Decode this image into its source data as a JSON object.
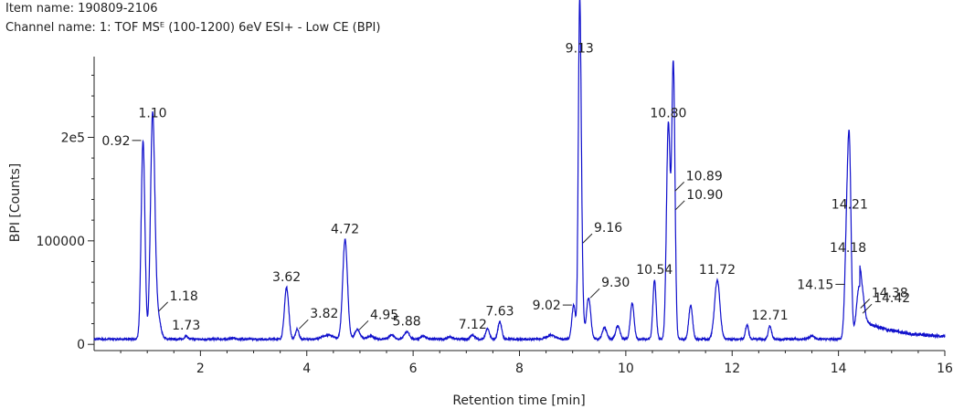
{
  "header": {
    "item_name": "Item name: 190809-2106",
    "channel_name": "Channel name: 1: TOF MSᴱ (100-1200) 6eV ESI+ - Low CE (BPI)"
  },
  "chart_data": {
    "type": "line",
    "xlabel": "Retention time [min]",
    "ylabel": "BPI [Counts]",
    "xlim": [
      0,
      16
    ],
    "ylim": [
      -6000,
      278000
    ],
    "x_ticks": [
      2,
      4,
      6,
      8,
      10,
      12,
      14,
      16
    ],
    "y_ticks": [
      0,
      100000,
      200000
    ],
    "y_tick_labels": [
      "0",
      "100000",
      "2e5"
    ],
    "line_color": "#1010cc",
    "baseline": 5000,
    "peaks": [
      {
        "rt": 0.92,
        "height": 197000,
        "width": 0.035,
        "label": "0.92",
        "label_pos": "left"
      },
      {
        "rt": 1.1,
        "height": 213000,
        "width": 0.04,
        "label": "1.10",
        "label_pos": "top"
      },
      {
        "rt": 1.18,
        "height": 32000,
        "width": 0.06,
        "label": "1.18",
        "label_pos": "right"
      },
      {
        "rt": 1.73,
        "height": 8000,
        "width": 0.03,
        "label": "1.73",
        "label_pos": "top"
      },
      {
        "rt": 3.62,
        "height": 55000,
        "width": 0.04,
        "label": "3.62",
        "label_pos": "top"
      },
      {
        "rt": 3.82,
        "height": 15000,
        "width": 0.03,
        "label": "3.82",
        "label_pos": "right"
      },
      {
        "rt": 4.72,
        "height": 101000,
        "width": 0.045,
        "label": "4.72",
        "label_pos": "top"
      },
      {
        "rt": 4.95,
        "height": 14000,
        "width": 0.05,
        "label": "4.95",
        "label_pos": "right"
      },
      {
        "rt": 5.88,
        "height": 12000,
        "width": 0.05,
        "label": "5.88",
        "label_pos": "top"
      },
      {
        "rt": 7.12,
        "height": 9000,
        "width": 0.04,
        "label": "7.12",
        "label_pos": "top"
      },
      {
        "rt": 7.63,
        "height": 22000,
        "width": 0.035,
        "label": "7.63",
        "label_pos": "top"
      },
      {
        "rt": 9.02,
        "height": 38000,
        "width": 0.035,
        "label": "9.02",
        "label_pos": "left"
      },
      {
        "rt": 9.13,
        "height": 276000,
        "width": 0.025,
        "label": "9.13",
        "label_pos": "top"
      },
      {
        "rt": 9.16,
        "height": 98000,
        "width": 0.03,
        "label": "9.16",
        "label_pos": "right"
      },
      {
        "rt": 9.3,
        "height": 45000,
        "width": 0.04,
        "label": "9.30",
        "label_pos": "right"
      },
      {
        "rt": 10.54,
        "height": 62000,
        "width": 0.03,
        "label": "10.54",
        "label_pos": "top"
      },
      {
        "rt": 10.8,
        "height": 213000,
        "width": 0.035,
        "label": "10.80",
        "label_pos": "top"
      },
      {
        "rt": 10.89,
        "height": 148000,
        "width": 0.03,
        "label": "10.89",
        "label_pos": "right"
      },
      {
        "rt": 10.9,
        "height": 130000,
        "width": 0.03,
        "label": "10.90",
        "label_pos": "right"
      },
      {
        "rt": 11.72,
        "height": 62000,
        "width": 0.05,
        "label": "11.72",
        "label_pos": "top"
      },
      {
        "rt": 12.71,
        "height": 18000,
        "width": 0.03,
        "label": "12.71",
        "label_pos": "top"
      },
      {
        "rt": 14.15,
        "height": 58000,
        "width": 0.035,
        "label": "14.15",
        "label_pos": "left"
      },
      {
        "rt": 14.18,
        "height": 83000,
        "width": 0.04,
        "label": "14.18",
        "label_pos": "top"
      },
      {
        "rt": 14.21,
        "height": 125000,
        "width": 0.03,
        "label": "14.21",
        "label_pos": "top"
      },
      {
        "rt": 14.38,
        "height": 35000,
        "width": 0.05,
        "label": "14.38",
        "label_pos": "right"
      },
      {
        "rt": 14.42,
        "height": 30000,
        "width": 0.06,
        "label": "14.42",
        "label_pos": "right"
      }
    ],
    "minor_peaks": [
      {
        "rt": 2.6,
        "height": 6000,
        "width": 0.05
      },
      {
        "rt": 4.4,
        "height": 9000,
        "width": 0.1
      },
      {
        "rt": 5.2,
        "height": 8000,
        "width": 0.06
      },
      {
        "rt": 5.6,
        "height": 9000,
        "width": 0.05
      },
      {
        "rt": 6.2,
        "height": 8000,
        "width": 0.05
      },
      {
        "rt": 6.7,
        "height": 7000,
        "width": 0.05
      },
      {
        "rt": 7.4,
        "height": 15000,
        "width": 0.035
      },
      {
        "rt": 8.6,
        "height": 9000,
        "width": 0.08
      },
      {
        "rt": 9.6,
        "height": 16000,
        "width": 0.04
      },
      {
        "rt": 9.85,
        "height": 18000,
        "width": 0.04
      },
      {
        "rt": 10.12,
        "height": 40000,
        "width": 0.035
      },
      {
        "rt": 11.22,
        "height": 38000,
        "width": 0.035
      },
      {
        "rt": 12.28,
        "height": 19000,
        "width": 0.03
      },
      {
        "rt": 13.5,
        "height": 8000,
        "width": 0.05
      }
    ],
    "tail": {
      "start": 14.4,
      "end": 16.0,
      "start_value": 30000,
      "end_value": 8000
    }
  }
}
